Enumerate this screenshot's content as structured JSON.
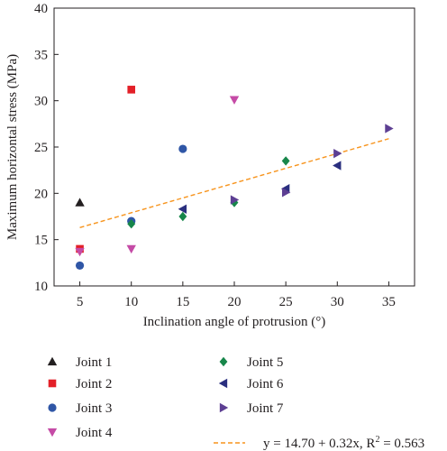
{
  "chart_data": {
    "type": "scatter",
    "xlabel": "Inclination angle of protrusion (°)",
    "ylabel": "Maximum horizontal stress (MPa)",
    "xlim": [
      2.5,
      37.5
    ],
    "ylim": [
      10,
      40
    ],
    "xticks": [
      5,
      10,
      15,
      20,
      25,
      30,
      35
    ],
    "yticks": [
      10,
      15,
      20,
      25,
      30,
      35,
      40
    ],
    "grid": false,
    "legend_position": "bottom",
    "series": [
      {
        "name": "Joint 1",
        "marker": "triangle-up",
        "color": "#231f20",
        "points": [
          [
            5,
            19.0
          ]
        ]
      },
      {
        "name": "Joint 2",
        "marker": "square",
        "color": "#e32028",
        "points": [
          [
            5,
            14.0
          ],
          [
            10,
            31.2
          ]
        ]
      },
      {
        "name": "Joint 3",
        "marker": "circle",
        "color": "#2f56a6",
        "points": [
          [
            5,
            12.2
          ],
          [
            10,
            17.0
          ],
          [
            15,
            24.8
          ]
        ]
      },
      {
        "name": "Joint 4",
        "marker": "triangle-down",
        "color": "#c54ba6",
        "points": [
          [
            5,
            13.7
          ],
          [
            10,
            14.0
          ],
          [
            20,
            30.1
          ]
        ]
      },
      {
        "name": "Joint 5",
        "marker": "diamond",
        "color": "#17864a",
        "points": [
          [
            10,
            16.7
          ],
          [
            15,
            17.5
          ],
          [
            20,
            19.0
          ],
          [
            25,
            23.5
          ]
        ]
      },
      {
        "name": "Joint 6",
        "marker": "triangle-left",
        "color": "#2a2f7f",
        "points": [
          [
            15,
            18.3
          ],
          [
            25,
            20.5
          ],
          [
            30,
            23.0
          ]
        ]
      },
      {
        "name": "Joint 7",
        "marker": "triangle-right",
        "color": "#5d3f93",
        "points": [
          [
            20,
            19.3
          ],
          [
            25,
            20.1
          ],
          [
            30,
            24.3
          ],
          [
            35,
            27.0
          ]
        ]
      }
    ],
    "fit": {
      "label": "y = 14.70 + 0.32x, R² = 0.563",
      "label_main": "y = 14.70 + 0.32x, R",
      "label_sup": "2",
      "label_tail": " = 0.563",
      "intercept": 14.7,
      "slope": 0.32,
      "x_range": [
        5,
        35
      ],
      "color": "#f7941d",
      "style": "dashed"
    }
  }
}
